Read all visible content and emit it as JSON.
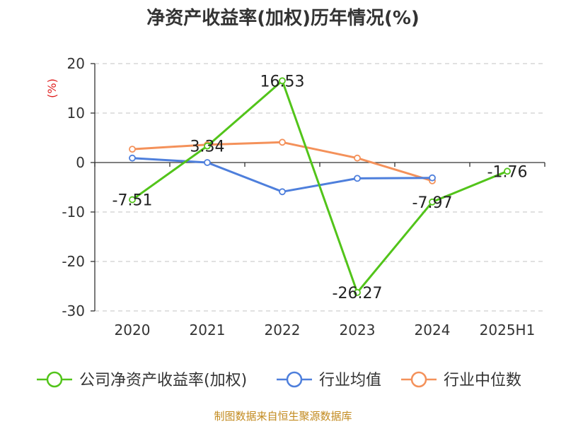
{
  "chart_data": {
    "type": "line",
    "title": "净资产收益率(加权)历年情况(%)",
    "ylabel": "(%)",
    "xlabel": "",
    "categories": [
      "2020",
      "2021",
      "2022",
      "2023",
      "2024",
      "2025H1"
    ],
    "ylim": [
      -30,
      20
    ],
    "yticks": [
      20,
      10,
      0,
      -10,
      -20,
      -30
    ],
    "grid": true,
    "legend_position": "bottom",
    "series": [
      {
        "name": "公司净资产收益率(加权)",
        "color": "#52c41a",
        "values": [
          -7.51,
          3.34,
          16.53,
          -26.27,
          -7.97,
          -1.76
        ]
      },
      {
        "name": "行业均值",
        "color": "#4e7fdc",
        "values": [
          0.9,
          0.0,
          -5.9,
          -3.2,
          -3.1,
          null
        ]
      },
      {
        "name": "行业中位数",
        "color": "#f4915a",
        "values": [
          2.7,
          3.6,
          4.1,
          0.9,
          -3.7,
          null
        ]
      }
    ],
    "data_labels": [
      "-7.51",
      "3.34",
      "16.53",
      "-26.27",
      "-7.97",
      "-1.76"
    ],
    "source_note": "制图数据来自恒生聚源数据库"
  }
}
